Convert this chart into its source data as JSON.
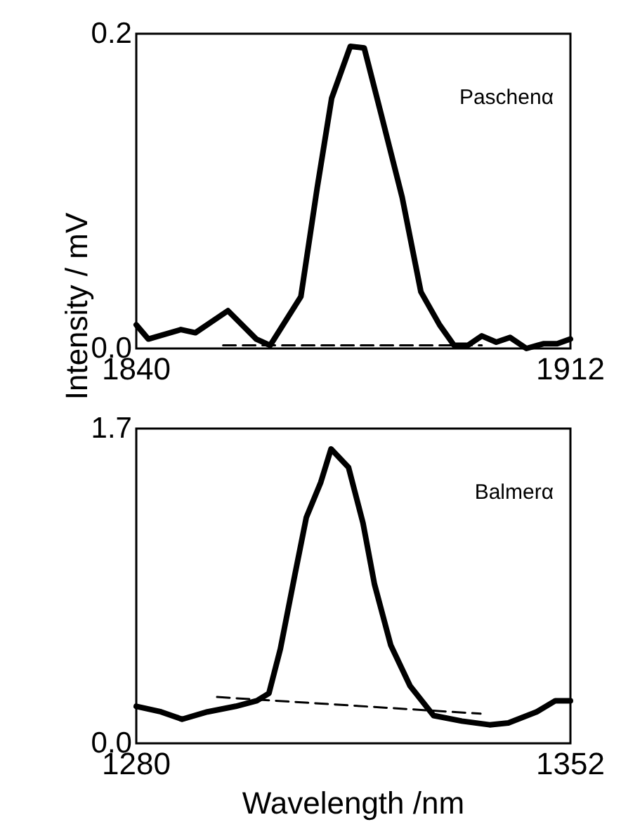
{
  "chart_data": [
    {
      "type": "line",
      "ylabel": "Intensity / mV",
      "annotations": [
        "Paschenα"
      ],
      "xlim": [
        1840,
        1912
      ],
      "xticks": [
        1840,
        1912
      ],
      "ylim": [
        0,
        0.2
      ],
      "yticks": [
        {
          "value": 0,
          "label": "0.0"
        },
        0.2
      ],
      "series": [
        {
          "color": "#000000",
          "line_style": "solid",
          "x": [
            1840,
            1842,
            1847.4,
            1849.8,
            1855.2,
            1859.9,
            1862.2,
            1867.3,
            1870,
            1872.4,
            1875.5,
            1877.8,
            1880.6,
            1884.1,
            1887.2,
            1890.3,
            1892.7,
            1895,
            1897.3,
            1899.7,
            1902,
            1904.7,
            1907.5,
            1909.8,
            1912
          ],
          "values": [
            0.015,
            0.006,
            0.012,
            0.01,
            0.024,
            0.006,
            0.002,
            0.033,
            0.102,
            0.159,
            0.192,
            0.191,
            0.149,
            0.096,
            0.036,
            0.015,
            0.002,
            0.002,
            0.008,
            0.004,
            0.007,
            0,
            0.003,
            0.003,
            0.006
          ]
        },
        {
          "color": "#000000",
          "line_style": "dashed",
          "x": [
            1854.4,
            1897.3
          ],
          "values": [
            0.002,
            0.002
          ]
        }
      ]
    },
    {
      "type": "line",
      "xlabel": "Wavelength /nm",
      "annotations": [
        "Balmerα"
      ],
      "xlim": [
        1280,
        1352
      ],
      "xticks": [
        1280,
        1352
      ],
      "ylim": [
        0,
        1.7
      ],
      "yticks": [
        {
          "value": 0,
          "label": "0.0"
        },
        1.7
      ],
      "series": [
        {
          "color": "#000000",
          "line_style": "solid",
          "x": [
            1280,
            1284.1,
            1287.6,
            1291.8,
            1296.5,
            1300,
            1302,
            1303.9,
            1306.3,
            1308.2,
            1310.6,
            1312.3,
            1315.2,
            1317.6,
            1319.5,
            1322.2,
            1325.4,
            1329.3,
            1334,
            1338.6,
            1341.7,
            1346.4,
            1349.5,
            1352
          ],
          "values": [
            0.2,
            0.17,
            0.13,
            0.17,
            0.2,
            0.23,
            0.27,
            0.51,
            0.91,
            1.22,
            1.41,
            1.59,
            1.49,
            1.19,
            0.86,
            0.53,
            0.31,
            0.15,
            0.12,
            0.1,
            0.11,
            0.17,
            0.23,
            0.23
          ]
        },
        {
          "color": "#000000",
          "line_style": "dashed",
          "x": [
            1293.4,
            1337.1
          ],
          "values": [
            0.25,
            0.16
          ]
        }
      ]
    }
  ]
}
